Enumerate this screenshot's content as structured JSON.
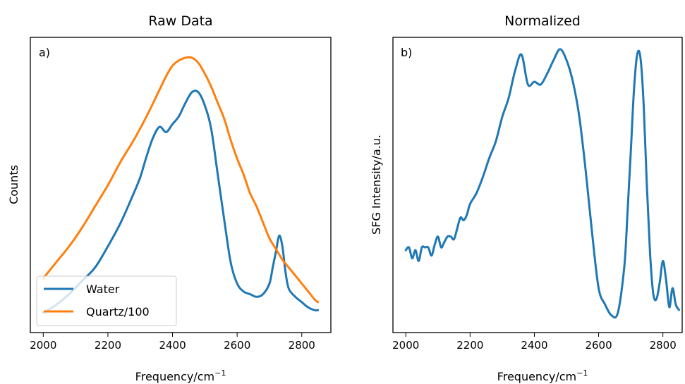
{
  "chart_data": [
    {
      "type": "line",
      "title": "Raw Data",
      "panel_label": "a)",
      "xlabel": "Frequency/cm",
      "xlabel_sup": "−1",
      "ylabel": "Counts",
      "xlim": [
        1960,
        2890
      ],
      "ylim": [
        0,
        100
      ],
      "xticks": [
        2000,
        2200,
        2400,
        2600,
        2800
      ],
      "legend_position": "lower-left",
      "series": [
        {
          "name": "Water",
          "color": "#1f77b4",
          "x": [
            2000,
            2040,
            2080,
            2120,
            2160,
            2200,
            2240,
            2280,
            2300,
            2320,
            2340,
            2360,
            2380,
            2400,
            2420,
            2440,
            2460,
            2480,
            2500,
            2520,
            2540,
            2560,
            2580,
            2600,
            2620,
            2640,
            2660,
            2680,
            2700,
            2710,
            2720,
            2730,
            2740,
            2750,
            2760,
            2780,
            2800,
            2820,
            2840,
            2850
          ],
          "values": [
            3,
            6,
            10,
            15,
            20,
            28,
            37,
            48,
            54,
            62,
            69,
            73,
            71,
            74,
            77,
            82,
            86,
            86,
            81,
            72,
            55,
            38,
            22,
            14,
            11,
            10,
            9,
            10,
            14,
            20,
            26,
            32,
            28,
            18,
            12,
            9,
            7,
            5,
            4,
            4
          ]
        },
        {
          "name": "Quartz/100",
          "color": "#ff7f0e",
          "x": [
            2000,
            2040,
            2080,
            2120,
            2160,
            2200,
            2240,
            2280,
            2320,
            2360,
            2380,
            2400,
            2420,
            2440,
            2460,
            2480,
            2500,
            2520,
            2540,
            2560,
            2580,
            2600,
            2620,
            2640,
            2660,
            2680,
            2700,
            2720,
            2740,
            2760,
            2780,
            2800,
            2820,
            2840,
            2850
          ],
          "values": [
            16,
            22,
            28,
            35,
            43,
            51,
            60,
            68,
            77,
            87,
            92,
            96,
            98,
            99,
            99,
            97,
            93,
            88,
            82,
            76,
            68,
            61,
            55,
            48,
            43,
            37,
            31,
            27,
            23,
            20,
            17,
            14,
            11,
            8,
            7
          ]
        }
      ]
    },
    {
      "type": "line",
      "title": "Normalized",
      "panel_label": "b)",
      "xlabel": "Frequency/cm",
      "xlabel_sup": "−1",
      "ylabel": "SFG Intensity/a.u.",
      "xlim": [
        1960,
        2860
      ],
      "ylim": [
        0,
        100
      ],
      "xticks": [
        2000,
        2200,
        2400,
        2600,
        2800
      ],
      "series": [
        {
          "name": "",
          "color": "#1f77b4",
          "x": [
            2000,
            2010,
            2020,
            2030,
            2040,
            2050,
            2060,
            2070,
            2080,
            2090,
            2100,
            2110,
            2120,
            2130,
            2140,
            2150,
            2160,
            2170,
            2180,
            2190,
            2200,
            2220,
            2240,
            2260,
            2280,
            2300,
            2320,
            2340,
            2360,
            2380,
            2400,
            2420,
            2440,
            2460,
            2480,
            2500,
            2520,
            2540,
            2560,
            2580,
            2600,
            2620,
            2640,
            2660,
            2680,
            2690,
            2700,
            2710,
            2720,
            2730,
            2740,
            2750,
            2760,
            2770,
            2780,
            2790,
            2800,
            2810,
            2820,
            2830,
            2840,
            2850
          ],
          "values": [
            26,
            27,
            23,
            26,
            22,
            27,
            27,
            27,
            24,
            28,
            31,
            27,
            29,
            31,
            31,
            30,
            34,
            38,
            37,
            39,
            43,
            47,
            53,
            60,
            66,
            75,
            82,
            92,
            98,
            87,
            88,
            87,
            91,
            96,
            100,
            96,
            88,
            75,
            55,
            32,
            12,
            6,
            2,
            3,
            20,
            40,
            62,
            85,
            98,
            97,
            80,
            50,
            25,
            10,
            8,
            14,
            22,
            15,
            5,
            12,
            6,
            4
          ]
        }
      ]
    }
  ]
}
